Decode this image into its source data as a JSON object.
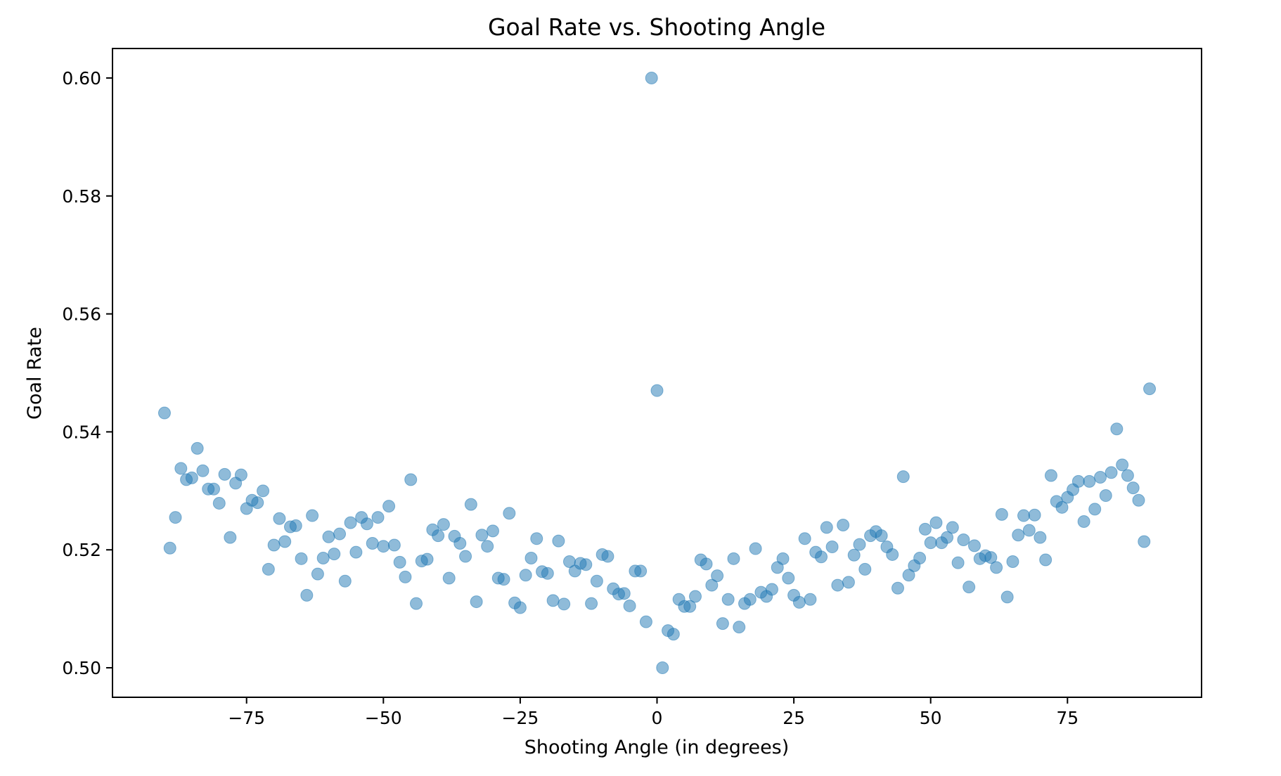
{
  "chart_data": {
    "type": "scatter",
    "title": "Goal Rate vs. Shooting Angle",
    "xlabel": "Shooting Angle (in degrees)",
    "ylabel": "Goal Rate",
    "xlim": [
      -99.5,
      99.5
    ],
    "ylim": [
      0.495,
      0.605
    ],
    "xticks": [
      -75,
      -50,
      -25,
      0,
      25,
      50,
      75
    ],
    "xtick_labels": [
      "−75",
      "−50",
      "−25",
      "0",
      "25",
      "50",
      "75"
    ],
    "yticks": [
      0.5,
      0.52,
      0.54,
      0.56,
      0.58,
      0.6
    ],
    "ytick_labels": [
      "0.50",
      "0.52",
      "0.54",
      "0.56",
      "0.58",
      "0.60"
    ],
    "grid": false,
    "marker_color": "#1f77b4",
    "marker_alpha": 0.5,
    "x": [
      -90,
      -89,
      -88,
      -87,
      -86,
      -85,
      -84,
      -83,
      -82,
      -81,
      -80,
      -79,
      -78,
      -77,
      -76,
      -75,
      -74,
      -73,
      -72,
      -71,
      -70,
      -69,
      -68,
      -67,
      -66,
      -65,
      -64,
      -63,
      -62,
      -61,
      -60,
      -59,
      -58,
      -57,
      -56,
      -55,
      -54,
      -53,
      -52,
      -51,
      -50,
      -49,
      -48,
      -47,
      -46,
      -45,
      -44,
      -43,
      -42,
      -41,
      -40,
      -39,
      -38,
      -37,
      -36,
      -35,
      -34,
      -33,
      -32,
      -31,
      -30,
      -29,
      -28,
      -27,
      -26,
      -25,
      -24,
      -23,
      -22,
      -21,
      -20,
      -19,
      -18,
      -17,
      -16,
      -15,
      -14,
      -13,
      -12,
      -11,
      -10,
      -9,
      -8,
      -7,
      -6,
      -5,
      -4,
      -3,
      -2,
      -1,
      0,
      1,
      2,
      3,
      4,
      5,
      6,
      7,
      8,
      9,
      10,
      11,
      12,
      13,
      14,
      15,
      16,
      17,
      18,
      19,
      20,
      21,
      22,
      23,
      24,
      25,
      26,
      27,
      28,
      29,
      30,
      31,
      32,
      33,
      34,
      35,
      36,
      37,
      38,
      39,
      40,
      41,
      42,
      43,
      44,
      45,
      46,
      47,
      48,
      49,
      50,
      51,
      52,
      53,
      54,
      55,
      56,
      57,
      58,
      59,
      60,
      61,
      62,
      63,
      64,
      65,
      66,
      67,
      68,
      69,
      70,
      71,
      72,
      73,
      74,
      75,
      76,
      77,
      78,
      79,
      80,
      81,
      82,
      83,
      84,
      85,
      86,
      87,
      88,
      89,
      90
    ],
    "y": [
      0.5432,
      0.5203,
      0.5255,
      0.5338,
      0.5319,
      0.5322,
      0.5372,
      0.5334,
      0.5303,
      0.5303,
      0.5279,
      0.5328,
      0.5221,
      0.5313,
      0.5327,
      0.527,
      0.5284,
      0.528,
      0.53,
      0.5167,
      0.5208,
      0.5253,
      0.5214,
      0.5239,
      0.5241,
      0.5185,
      0.5123,
      0.5258,
      0.5159,
      0.5186,
      0.5222,
      0.5193,
      0.5227,
      0.5147,
      0.5246,
      0.5196,
      0.5255,
      0.5244,
      0.5211,
      0.5255,
      0.5206,
      0.5274,
      0.5208,
      0.5179,
      0.5154,
      0.5319,
      0.5109,
      0.5181,
      0.5184,
      0.5234,
      0.5224,
      0.5243,
      0.5152,
      0.5223,
      0.5211,
      0.5189,
      0.5277,
      0.5112,
      0.5225,
      0.5206,
      0.5232,
      0.5152,
      0.515,
      0.5262,
      0.511,
      0.5102,
      0.5157,
      0.5186,
      0.5219,
      0.5163,
      0.516,
      0.5114,
      0.5215,
      0.5108,
      0.518,
      0.5164,
      0.5177,
      0.5175,
      0.5109,
      0.5147,
      0.5192,
      0.5189,
      0.5134,
      0.5125,
      0.5126,
      0.5105,
      0.5164,
      0.5164,
      0.5078,
      0.6,
      0.547,
      0.5,
      0.5063,
      0.5057,
      0.5116,
      0.5104,
      0.5104,
      0.5121,
      0.5183,
      0.5176,
      0.514,
      0.5156,
      0.5075,
      0.5116,
      0.5185,
      0.5069,
      0.5109,
      0.5116,
      0.5202,
      0.5128,
      0.5121,
      0.5133,
      0.517,
      0.5185,
      0.5152,
      0.5123,
      0.5111,
      0.5219,
      0.5116,
      0.5196,
      0.5188,
      0.5238,
      0.5205,
      0.514,
      0.5242,
      0.5145,
      0.5191,
      0.5209,
      0.5167,
      0.5224,
      0.5231,
      0.5224,
      0.5205,
      0.5192,
      0.5135,
      0.5324,
      0.5157,
      0.5173,
      0.5186,
      0.5235,
      0.5212,
      0.5246,
      0.5212,
      0.5221,
      0.5238,
      0.5178,
      0.5217,
      0.5137,
      0.5207,
      0.5185,
      0.519,
      0.5187,
      0.517,
      0.526,
      0.512,
      0.518,
      0.5225,
      0.5258,
      0.5233,
      0.5259,
      0.5221,
      0.5183,
      0.5326,
      0.5282,
      0.5272,
      0.5289,
      0.5302,
      0.5316,
      0.5248,
      0.5316,
      0.5269,
      0.5323,
      0.5292,
      0.5331,
      0.5405,
      0.5344,
      0.5326,
      0.5305,
      0.5284,
      0.5214,
      0.5473
    ]
  }
}
